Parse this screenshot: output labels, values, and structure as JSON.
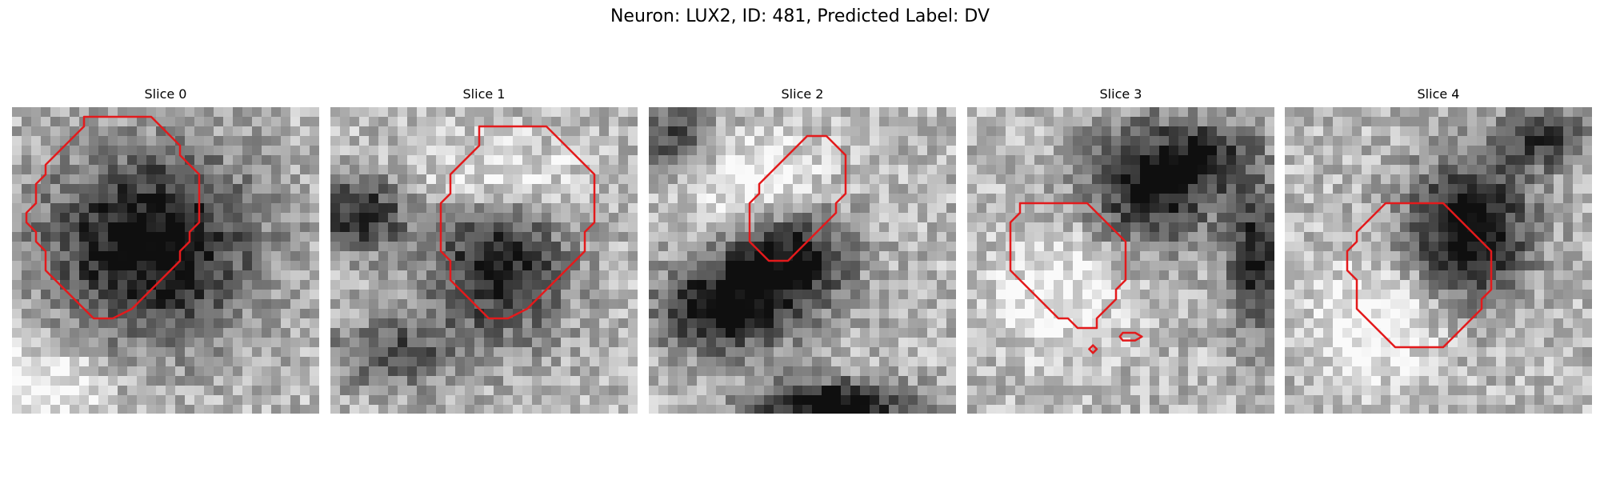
{
  "figure": {
    "title": "Neuron: LUX2, ID: 481, Predicted Label: DV"
  },
  "panels": [
    {
      "title": "Slice 0",
      "seed": 11,
      "dark_blobs": [
        [
          0.45,
          0.45,
          0.34,
          0.3,
          0.75
        ]
      ],
      "light_blobs": [
        [
          0.1,
          0.9,
          0.2,
          0.15,
          0.3
        ]
      ]
    },
    {
      "title": "Slice 1",
      "seed": 23,
      "dark_blobs": [
        [
          0.55,
          0.5,
          0.22,
          0.25,
          0.65
        ],
        [
          0.1,
          0.35,
          0.15,
          0.12,
          0.6
        ],
        [
          0.2,
          0.8,
          0.2,
          0.12,
          0.4
        ]
      ],
      "light_blobs": [
        [
          0.55,
          0.25,
          0.25,
          0.15,
          0.35
        ]
      ]
    },
    {
      "title": "Slice 2",
      "seed": 37,
      "dark_blobs": [
        [
          0.45,
          0.5,
          0.2,
          0.18,
          0.7
        ],
        [
          0.22,
          0.66,
          0.2,
          0.14,
          0.7
        ],
        [
          0.1,
          0.1,
          0.12,
          0.1,
          0.5
        ],
        [
          0.6,
          0.97,
          0.25,
          0.08,
          0.8
        ]
      ],
      "light_blobs": [
        [
          0.35,
          0.25,
          0.2,
          0.15,
          0.35
        ]
      ]
    },
    {
      "title": "Slice 3",
      "seed": 41,
      "dark_blobs": [
        [
          0.6,
          0.25,
          0.22,
          0.2,
          0.65
        ],
        [
          0.95,
          0.5,
          0.1,
          0.25,
          0.6
        ],
        [
          0.8,
          0.15,
          0.15,
          0.1,
          0.4
        ]
      ],
      "light_blobs": [
        [
          0.3,
          0.6,
          0.2,
          0.2,
          0.25
        ]
      ]
    },
    {
      "title": "Slice 4",
      "seed": 53,
      "dark_blobs": [
        [
          0.6,
          0.4,
          0.2,
          0.22,
          0.75
        ],
        [
          0.85,
          0.1,
          0.15,
          0.1,
          0.5
        ]
      ],
      "light_blobs": [
        [
          0.3,
          0.7,
          0.2,
          0.2,
          0.3
        ]
      ]
    }
  ],
  "style": {
    "contour_color": "#e31a1c"
  }
}
